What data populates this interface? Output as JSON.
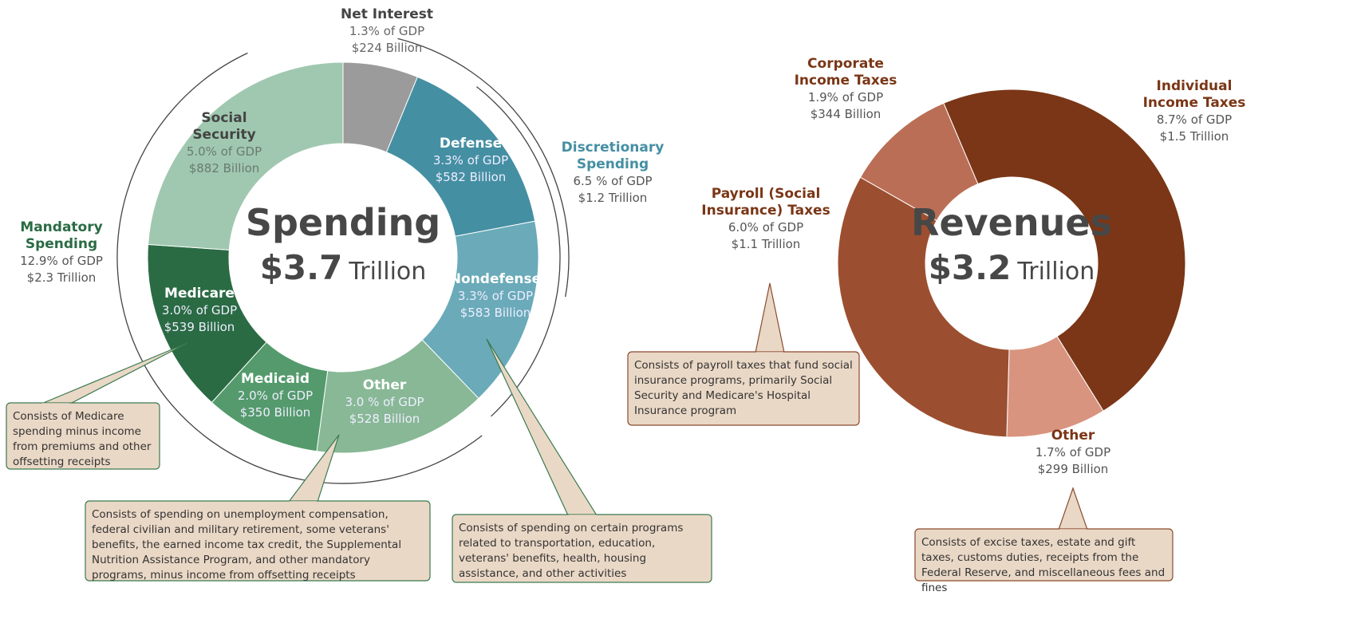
{
  "chart_data": [
    {
      "type": "donut",
      "title": "Spending",
      "total": "$3.7",
      "total_unit": "Trillion",
      "categories": [
        "Net Interest",
        "Defense",
        "Nondefense",
        "Other",
        "Medicaid",
        "Medicare",
        "Social Security"
      ],
      "values": [
        1.3,
        3.3,
        3.3,
        3.0,
        2.0,
        3.0,
        5.0
      ],
      "value_labels": [
        "1.3% of GDP",
        "3.3% of GDP",
        "3.3% of GDP",
        "3.0 % of GDP",
        "2.0% of GDP",
        "3.0% of GDP",
        "5.0% of GDP"
      ],
      "amount_labels": [
        "$224 Billion",
        "$582 Billion",
        "$583 Billion",
        "$528 Billion",
        "$350 Billion",
        "$539 Billion",
        "$882 Billion"
      ],
      "colors": [
        "#9a9b9a",
        "#458fa3",
        "#6aaab9",
        "#88b896",
        "#549a6c",
        "#2a6b44",
        "#a0c8b0"
      ],
      "groups": [
        {
          "name": "Mandatory Spending",
          "value_label": "12.9% of GDP",
          "amount_label": "$2.3 Trillion",
          "color": "#2a6b44"
        },
        {
          "name": "Discretionary Spending",
          "value_label": "6.5 % of GDP",
          "amount_label": "$1.2 Trillion",
          "color": "#458fa3"
        }
      ],
      "notes": [
        "Consists of Medicare spending minus income from premiums and other offsetting receipts",
        "Consists of spending on unemployment compensation, federal civilian and military retirement, some veterans' benefits, the earned income tax credit, the Supplemental Nutrition Assistance Program, and other mandatory programs, minus income from offsetting receipts",
        "Consists of spending on certain programs related to transportation, education, veterans' benefits, health, housing assistance, and other activities"
      ]
    },
    {
      "type": "donut",
      "title": "Revenues",
      "total": "$3.2",
      "total_unit": "Trillion",
      "categories": [
        "Individual Income Taxes",
        "Other",
        "Payroll (Social Insurance) Taxes",
        "Corporate Income Taxes"
      ],
      "values": [
        8.7,
        1.7,
        6.0,
        1.9
      ],
      "value_labels": [
        "8.7% of GDP",
        "1.7% of GDP",
        "6.0% of GDP",
        "1.9% of GDP"
      ],
      "amount_labels": [
        "$1.5 Trillion",
        "$299 Billion",
        "$1.1 Trillion",
        "$344 Billion"
      ],
      "colors": [
        "#7a3616",
        "#d9947f",
        "#9c4f30",
        "#bb6e56"
      ],
      "notes": [
        "Consists of payroll taxes that fund social insurance programs, primarily Social Security and Medicare's Hospital Insurance program",
        "Consists of excise taxes, estate and gift taxes, customs duties, receipts from the Federal Reserve, and miscellaneous fees and fines"
      ]
    }
  ]
}
